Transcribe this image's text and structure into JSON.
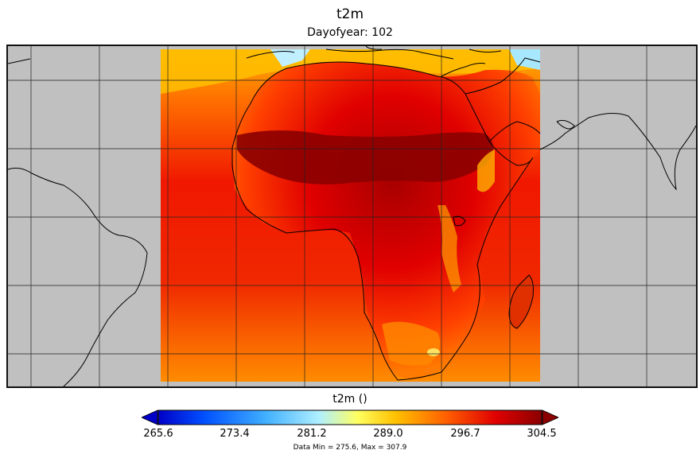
{
  "header": {
    "title": "t2m",
    "subtitle": "Dayofyear: 102"
  },
  "colorbar": {
    "title": "t2m ()",
    "ticks": [
      "265.6",
      "273.4",
      "281.2",
      "289.0",
      "296.7",
      "304.5"
    ],
    "min_value": 265.6,
    "max_value": 304.5,
    "extend": "both",
    "colors": [
      "#0000c8",
      "#0060ff",
      "#40b0ff",
      "#b0f0ff",
      "#ffff60",
      "#ffc000",
      "#ff6000",
      "#e60000",
      "#8b0000"
    ]
  },
  "footer": {
    "data_range": "Data Min = 275.6, Max = 307.9"
  },
  "map": {
    "projection": "lat-lon",
    "region": "Africa",
    "land_mask_color": "#c0c0c0",
    "gridlines": true
  }
}
